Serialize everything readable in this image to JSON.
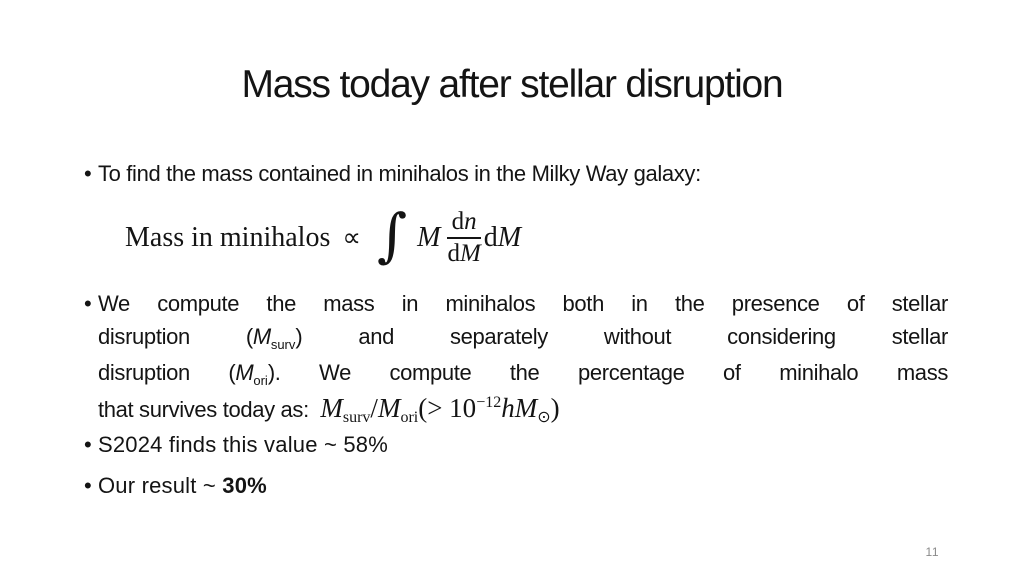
{
  "slide": {
    "title": "Mass today after stellar disruption",
    "page_number": "11",
    "background_color": "#ffffff",
    "text_color": "#141414",
    "page_number_color": "#8a8a8a"
  },
  "glyphs": {
    "bullet": "•"
  },
  "formula": {
    "prefix": "Mass in minihalos",
    "propto": "∝",
    "integral": "∫",
    "integrand": "M",
    "frac_num_d": "d",
    "frac_num_var": "n",
    "frac_den_d": "d",
    "frac_den_var": "M",
    "diff_d": "d",
    "diff_var": "M"
  },
  "bullets": {
    "find_mass": [
      {
        "seg": [
          {
            "t": "To find the mass contained in minihalos in the Milky Way galaxy:"
          }
        ]
      }
    ],
    "compute_mass": [
      {
        "j": true,
        "seg": [
          {
            "t": "We compute the mass in minihalos both in the presence of stellar"
          }
        ]
      },
      {
        "j": true,
        "seg": [
          {
            "t": "disruption ("
          },
          {
            "t": "M",
            "i": true
          },
          {
            "t": "surv",
            "sub": true
          },
          {
            "t": ") and separately without considering stellar"
          }
        ]
      },
      {
        "j": true,
        "seg": [
          {
            "t": "disruption ("
          },
          {
            "t": "M",
            "i": true
          },
          {
            "t": "ori",
            "sub": true
          },
          {
            "t": "). We compute the percentage of minihalo mass"
          }
        ]
      },
      {
        "seg": [
          {
            "t": "that survives today as:  "
          },
          {
            "t": "M",
            "sr": true,
            "i": true
          },
          {
            "t": "surv",
            "sr": true,
            "sub": true
          },
          {
            "t": "/",
            "sr": true
          },
          {
            "t": "M",
            "sr": true,
            "i": true
          },
          {
            "t": "ori",
            "sr": true,
            "sub": true
          },
          {
            "t": "(> 10",
            "sr": true
          },
          {
            "t": "−12",
            "sr": true,
            "sup": true
          },
          {
            "t": "h",
            "sr": true,
            "i": true
          },
          {
            "t": "M",
            "sr": true,
            "i": true
          },
          {
            "t": "⊙",
            "sr": true,
            "sub": true
          },
          {
            "t": ")",
            "sr": true
          }
        ]
      }
    ],
    "s2024_result": [
      {
        "seg": [
          {
            "t": "S2024 finds this value ~ 58%"
          }
        ]
      }
    ],
    "our_result": [
      {
        "seg": [
          {
            "t": "Our result ~ "
          },
          {
            "t": "30%",
            "b": true
          }
        ]
      }
    ]
  }
}
